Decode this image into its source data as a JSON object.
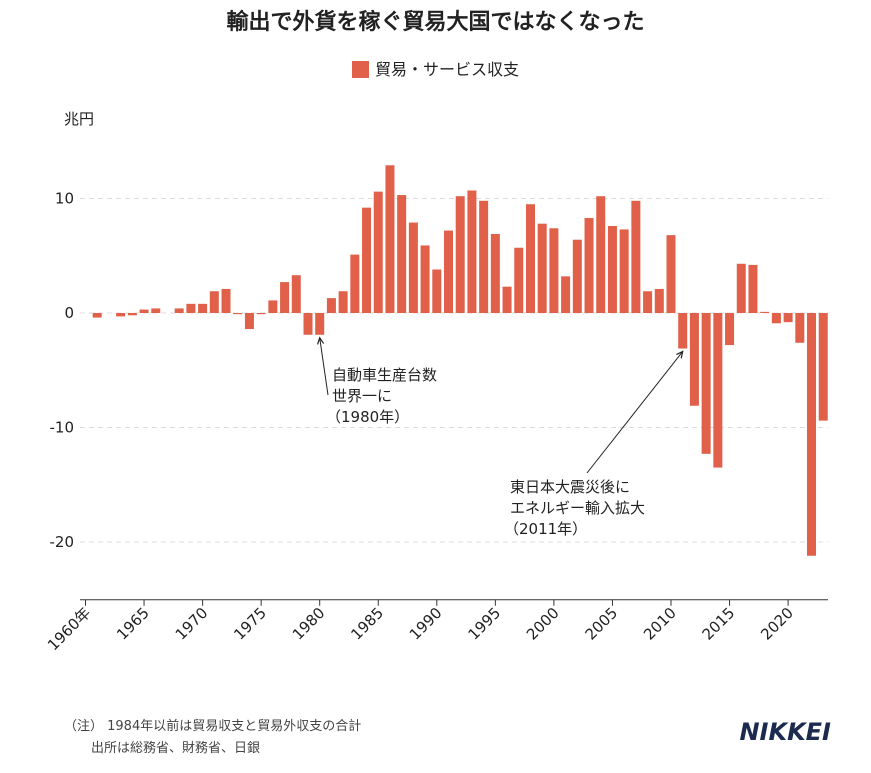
{
  "title": "輸出で外貨を稼ぐ貿易大国ではなくなった",
  "unit_label": "兆円",
  "note": {
    "line1": "（注） 1984年以前は貿易収支と貿易外収支の合計",
    "line2": "出所は総務省、財務省、日銀"
  },
  "logo": "NIKKEI",
  "colors": {
    "bar": "#e0604a",
    "grid": "#dddddd",
    "axis": "#333333"
  },
  "chart_data": {
    "type": "bar",
    "categories": [
      1960,
      1961,
      1962,
      1963,
      1964,
      1965,
      1966,
      1967,
      1968,
      1969,
      1970,
      1971,
      1972,
      1973,
      1974,
      1975,
      1976,
      1977,
      1978,
      1979,
      1980,
      1981,
      1982,
      1983,
      1984,
      1985,
      1986,
      1987,
      1988,
      1989,
      1990,
      1991,
      1992,
      1993,
      1994,
      1995,
      1996,
      1997,
      1998,
      1999,
      2000,
      2001,
      2002,
      2003,
      2004,
      2005,
      2006,
      2007,
      2008,
      2009,
      2010,
      2011,
      2012,
      2013,
      2014,
      2015,
      2016,
      2017,
      2018,
      2019,
      2020,
      2021,
      2022,
      2023
    ],
    "series": [
      {
        "name": "貿易・サービス収支",
        "values": [
          0.0,
          -0.4,
          0.0,
          -0.3,
          -0.2,
          0.3,
          0.4,
          0.0,
          0.4,
          0.8,
          0.8,
          1.9,
          2.1,
          -0.1,
          -1.4,
          -0.1,
          1.1,
          2.7,
          3.3,
          -1.9,
          -1.9,
          1.3,
          1.9,
          5.1,
          9.2,
          10.6,
          12.9,
          10.3,
          7.9,
          5.9,
          3.8,
          7.2,
          10.2,
          10.7,
          9.8,
          6.9,
          2.3,
          5.7,
          9.5,
          7.8,
          7.4,
          3.2,
          6.4,
          8.3,
          10.2,
          7.6,
          7.3,
          9.8,
          1.9,
          2.1,
          6.8,
          -3.1,
          -8.1,
          -12.3,
          -13.5,
          -2.8,
          4.3,
          4.2,
          0.1,
          -0.9,
          -0.8,
          -2.6,
          -21.2,
          -9.4
        ]
      }
    ],
    "xlabel": "",
    "ylabel": "兆円",
    "ylim": [
      -25,
      15
    ],
    "yticks": [
      10,
      0,
      -10,
      -20
    ],
    "ytick_labels": [
      "10",
      "0",
      "-10",
      "-20"
    ],
    "xticks": [
      1960,
      1965,
      1970,
      1975,
      1980,
      1985,
      1990,
      1995,
      2000,
      2005,
      2010,
      2015,
      2020
    ],
    "xtick_labels": [
      "1960年",
      "1965",
      "1970",
      "1975",
      "1980",
      "1985",
      "1990",
      "1995",
      "2000",
      "2005",
      "2010",
      "2015",
      "2020"
    ],
    "grid": true,
    "legend_position": "top-center",
    "annotations": [
      {
        "year": 1980,
        "value": -1.9,
        "lines": [
          "自動車生産台数",
          "世界一に",
          "（1980年）"
        ]
      },
      {
        "year": 2011,
        "value": -3.1,
        "lines": [
          "東日本大震災後に",
          "エネルギー輸入拡大",
          "（2011年）"
        ]
      }
    ]
  }
}
